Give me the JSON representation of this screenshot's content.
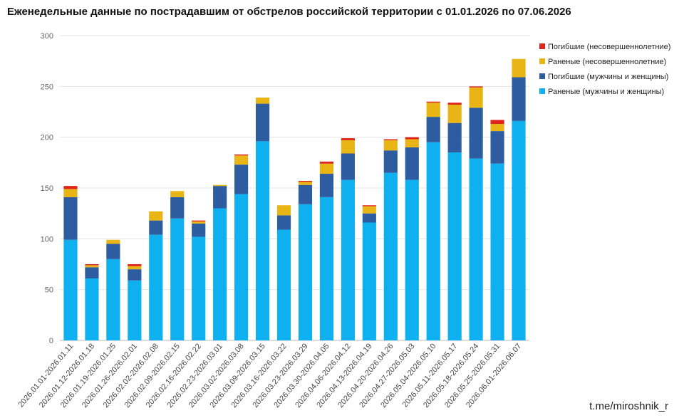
{
  "chart_data": {
    "type": "bar",
    "stacked": true,
    "title": "Еженедельные данные по пострадавшим от обстрелов российской территории с 01.01.2026 по 07.06.2026",
    "xlabel": "",
    "ylabel": "",
    "ylim": [
      0,
      300
    ],
    "yticks": [
      0,
      50,
      100,
      150,
      200,
      250,
      300
    ],
    "grid": true,
    "legend_position": "right",
    "categories": [
      "2026.01.01-2026.01.11",
      "2026.01.12-2026.01.18",
      "2026.01.19-2026.01.25",
      "2026.01.26-2026.02.01",
      "2026.02.02-2026.02.08",
      "2026.02.09-2026.02.15",
      "2026.02.16-2026.02.22",
      "2026.02.23-2026.03.01",
      "2026.03.02-2026.03.08",
      "2026.03.09-2026.03.15",
      "2026.03.16-2026.03.22",
      "2026.03.23-2026.03.29",
      "2026.03.30-2026.04.05",
      "2026.04.06-2026.04.12",
      "2026.04.13-2026.04.19",
      "2026.04.20-2026.04.26",
      "2026.04.27-2026.05.03",
      "2026.05.04-2026.05.10",
      "2026.05.11-2026.05.17",
      "2026.05.18-2026.05.24",
      "2026.05.25-2026.05.31",
      "2026.06.01-2026.06.07"
    ],
    "series": [
      {
        "name": "Раненые (мужчины и женщины)",
        "color": "#0fb0ef",
        "values": [
          99,
          61,
          80,
          59,
          104,
          120,
          102,
          130,
          144,
          196,
          109,
          134,
          141,
          158,
          116,
          165,
          158,
          195,
          185,
          179,
          174,
          216
        ]
      },
      {
        "name": "Погибшие (мужчины и женщины)",
        "color": "#2e5ca0",
        "values": [
          42,
          11,
          15,
          11,
          14,
          21,
          13,
          22,
          29,
          37,
          14,
          19,
          23,
          26,
          9,
          22,
          32,
          25,
          29,
          50,
          32,
          43
        ]
      },
      {
        "name": "Раненые (несовершеннолетние)",
        "color": "#e8b514",
        "values": [
          8,
          2,
          4,
          3,
          9,
          6,
          2,
          1,
          9,
          6,
          10,
          3,
          10,
          13,
          7,
          10,
          8,
          14,
          18,
          20,
          7,
          18
        ]
      },
      {
        "name": "Погибшие (несовершеннолетние)",
        "color": "#e0231c",
        "values": [
          3,
          1,
          0,
          2,
          0,
          0,
          1,
          0,
          1,
          0,
          0,
          1,
          2,
          2,
          1,
          1,
          2,
          1,
          2,
          1,
          4,
          0
        ]
      }
    ]
  },
  "watermark": "t.me/miroshnik_r"
}
